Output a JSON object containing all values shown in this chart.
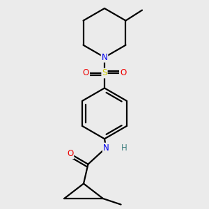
{
  "background_color": "#ebebeb",
  "atom_colors": {
    "C": "#000000",
    "N": "#0000ee",
    "O": "#ee0000",
    "S": "#cccc00",
    "H": "#408080"
  },
  "bond_color": "#000000",
  "bond_width": 1.6,
  "figsize": [
    3.0,
    3.0
  ],
  "dpi": 100,
  "xlim": [
    -2.5,
    2.5
  ],
  "ylim": [
    -3.2,
    3.8
  ]
}
